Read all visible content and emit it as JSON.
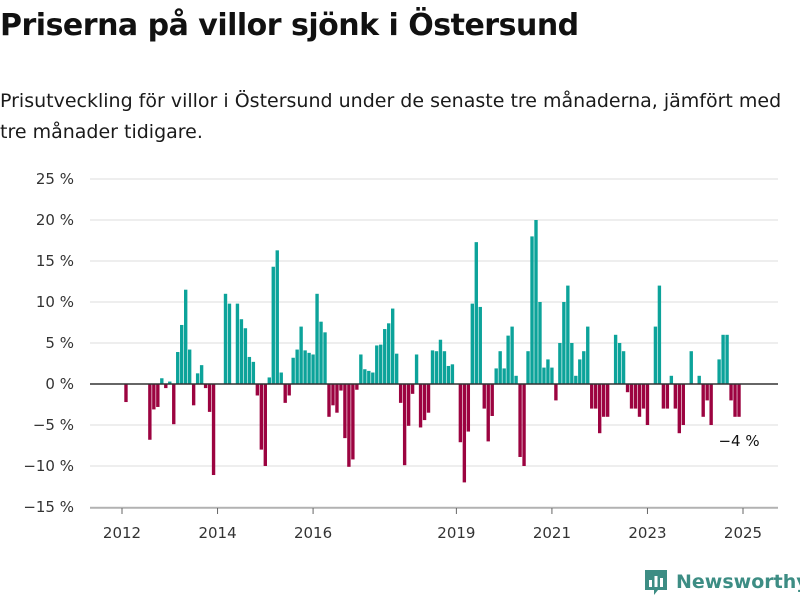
{
  "title": "Priserna på villor sjönk i Östersund",
  "subtitle": "Prisutveckling för villor i Östersund under de senaste tre månaderna, jämfört med tre månader tidigare.",
  "brand": "Newsworthy",
  "colors": {
    "positive": "#0ca39a",
    "negative": "#9c0340",
    "grid": "#dddddd",
    "zero_line": "#333333",
    "axis_text": "#333333",
    "brand": "#3d8d84"
  },
  "chart_data": {
    "type": "bar",
    "title": "Priserna på villor sjönk i Östersund",
    "subtitle": "Prisutveckling för villor i Östersund under de senaste tre månaderna, jämfört med tre månader tidigare.",
    "xlabel": "",
    "ylabel": "",
    "y_unit": "%",
    "ylim": [
      -15,
      25
    ],
    "y_ticks": [
      -15,
      -10,
      -5,
      0,
      5,
      10,
      15,
      20,
      25
    ],
    "y_tick_labels": [
      "−15 %",
      "−10 %",
      "−5 %",
      "0 %",
      "5 %",
      "10 %",
      "15 %",
      "20 %",
      "25 %"
    ],
    "x_ticks": [
      2012,
      2014,
      2016,
      2019,
      2021,
      2023,
      2025
    ],
    "x_tick_labels": [
      "2012",
      "2014",
      "2016",
      "2019",
      "2021",
      "2023",
      "2025"
    ],
    "grid": true,
    "legend": "none",
    "annotation": {
      "label": "−4 %",
      "x": "2024-12"
    },
    "x": [
      "2012-01",
      "2012-02",
      "2012-03",
      "2012-04",
      "2012-05",
      "2012-06",
      "2012-07",
      "2012-08",
      "2012-09",
      "2012-10",
      "2012-11",
      "2012-12",
      "2013-01",
      "2013-02",
      "2013-03",
      "2013-04",
      "2013-05",
      "2013-06",
      "2013-07",
      "2013-08",
      "2013-09",
      "2013-10",
      "2013-11",
      "2013-12",
      "2014-01",
      "2014-02",
      "2014-03",
      "2014-04",
      "2014-05",
      "2014-06",
      "2014-07",
      "2014-08",
      "2014-09",
      "2014-10",
      "2014-11",
      "2014-12",
      "2015-01",
      "2015-02",
      "2015-03",
      "2015-04",
      "2015-05",
      "2015-06",
      "2015-07",
      "2015-08",
      "2015-09",
      "2015-10",
      "2015-11",
      "2015-12",
      "2016-01",
      "2016-02",
      "2016-03",
      "2016-04",
      "2016-05",
      "2016-06",
      "2016-07",
      "2016-08",
      "2016-09",
      "2016-10",
      "2016-11",
      "2016-12",
      "2017-01",
      "2017-02",
      "2017-03",
      "2017-04",
      "2017-05",
      "2017-06",
      "2017-07",
      "2017-08",
      "2017-09",
      "2017-10",
      "2017-11",
      "2017-12",
      "2018-01",
      "2018-02",
      "2018-03",
      "2018-04",
      "2018-05",
      "2018-06",
      "2018-07",
      "2018-08",
      "2018-09",
      "2018-10",
      "2018-11",
      "2018-12",
      "2019-01",
      "2019-02",
      "2019-03",
      "2019-04",
      "2019-05",
      "2019-06",
      "2019-07",
      "2019-08",
      "2019-09",
      "2019-10",
      "2019-11",
      "2019-12",
      "2020-01",
      "2020-02",
      "2020-03",
      "2020-04",
      "2020-05",
      "2020-06",
      "2020-07",
      "2020-08",
      "2020-09",
      "2020-10",
      "2020-11",
      "2020-12",
      "2021-01",
      "2021-02",
      "2021-03",
      "2021-04",
      "2021-05",
      "2021-06",
      "2021-07",
      "2021-08",
      "2021-09",
      "2021-10",
      "2021-11",
      "2021-12",
      "2022-01",
      "2022-02",
      "2022-03",
      "2022-04",
      "2022-05",
      "2022-06",
      "2022-07",
      "2022-08",
      "2022-09",
      "2022-10",
      "2022-11",
      "2022-12",
      "2023-01",
      "2023-02",
      "2023-03",
      "2023-04",
      "2023-05",
      "2023-06",
      "2023-07",
      "2023-08",
      "2023-09",
      "2023-10",
      "2023-11",
      "2023-12",
      "2024-01",
      "2024-02",
      "2024-03",
      "2024-04",
      "2024-05",
      "2024-06",
      "2024-07",
      "2024-08",
      "2024-09",
      "2024-10",
      "2024-11",
      "2024-12"
    ],
    "values": [
      null,
      -2.2,
      null,
      null,
      null,
      null,
      null,
      -6.8,
      -3.1,
      -2.8,
      0.7,
      -0.5,
      0.3,
      -4.9,
      3.9,
      7.2,
      11.5,
      4.2,
      -2.6,
      1.3,
      2.3,
      -0.5,
      -3.4,
      -11.1,
      null,
      null,
      11.0,
      9.8,
      null,
      9.8,
      7.9,
      6.8,
      3.3,
      2.7,
      -1.4,
      -8.0,
      -10.0,
      0.8,
      14.3,
      16.3,
      1.4,
      -2.3,
      -1.4,
      3.2,
      4.2,
      7.0,
      4.1,
      3.8,
      3.6,
      11.0,
      7.6,
      6.3,
      -4.0,
      -2.6,
      -3.5,
      -0.8,
      -6.6,
      -10.1,
      -9.2,
      -0.7,
      3.6,
      1.8,
      1.6,
      1.4,
      4.7,
      4.8,
      6.7,
      7.4,
      9.2,
      3.7,
      -2.3,
      -9.9,
      -5.1,
      -1.2,
      3.6,
      -5.3,
      -4.4,
      -3.5,
      4.1,
      4.0,
      5.4,
      4.0,
      2.2,
      2.4,
      null,
      -7.1,
      -12.0,
      -5.8,
      9.8,
      17.3,
      9.4,
      -3.0,
      -7.0,
      -3.9,
      1.9,
      4.0,
      1.9,
      5.9,
      7.0,
      1.0,
      -8.9,
      -10.0,
      4.0,
      18.0,
      20.0,
      10.0,
      2.0,
      3.0,
      2.0,
      -2.0,
      5.0,
      10.0,
      12.0,
      5.0,
      1.0,
      3.0,
      4.0,
      7.0,
      -3.0,
      -3.0,
      -6.0,
      -4.0,
      -4.0,
      null,
      6.0,
      5.0,
      4.0,
      -1.0,
      -3.0,
      -3.0,
      -4.0,
      -3.0,
      -5.0,
      null,
      7.0,
      12.0,
      -3.0,
      -3.0,
      1.0,
      -3.0,
      -6.0,
      -5.0,
      null,
      4.0,
      null,
      1.0,
      -4.0,
      -2.0,
      -5.0,
      null,
      3.0,
      6.0,
      6.0,
      -2.0,
      -4.0,
      -4.0
    ]
  }
}
